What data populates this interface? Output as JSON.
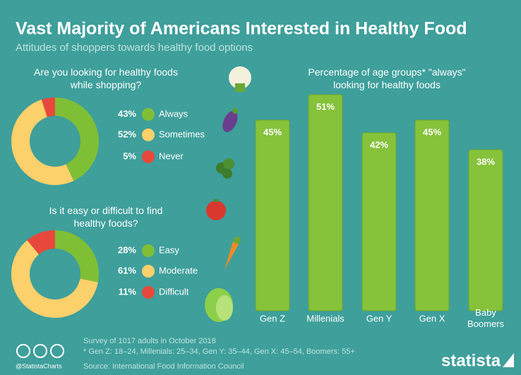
{
  "header": {
    "title": "Vast Majority of Americans Interested in Healthy Food",
    "subtitle": "Attitudes of shoppers towards healthy food options"
  },
  "chart_data": [
    {
      "type": "pie",
      "title": "Are you looking for healthy foods while shopping?",
      "categories": [
        "Always",
        "Sometimes",
        "Never"
      ],
      "values": [
        43,
        52,
        5
      ],
      "value_labels": [
        "43%",
        "52%",
        "5%"
      ],
      "colors": [
        "#7fbf35",
        "#fcd06b",
        "#e8483b"
      ]
    },
    {
      "type": "pie",
      "title": "Is it easy or difficult to find healthy foods?",
      "categories": [
        "Easy",
        "Moderate",
        "Difficult"
      ],
      "values": [
        28,
        61,
        11
      ],
      "value_labels": [
        "28%",
        "61%",
        "11%"
      ],
      "colors": [
        "#7fbf35",
        "#fcd06b",
        "#e8483b"
      ]
    },
    {
      "type": "bar",
      "title": "Percentage of age groups* \"always\" looking for healthy foods",
      "categories": [
        "Gen Z",
        "Millenials",
        "Gen Y",
        "Gen X",
        "Baby Boomers"
      ],
      "values": [
        45,
        51,
        42,
        45,
        38
      ],
      "value_labels": [
        "45%",
        "51%",
        "42%",
        "45%",
        "38%"
      ],
      "color": "#86c23a"
    }
  ],
  "footer": {
    "note": "Survey of 1017 adults in October 2018",
    "footnote": "* Gen Z: 18–24, Millenials: 25–34, Gen Y: 35–44, Gen X: 45–54, Boomers: 55+",
    "source": "Source: International Food Information Council",
    "handle": "@StatistaCharts",
    "logo": "statista"
  }
}
